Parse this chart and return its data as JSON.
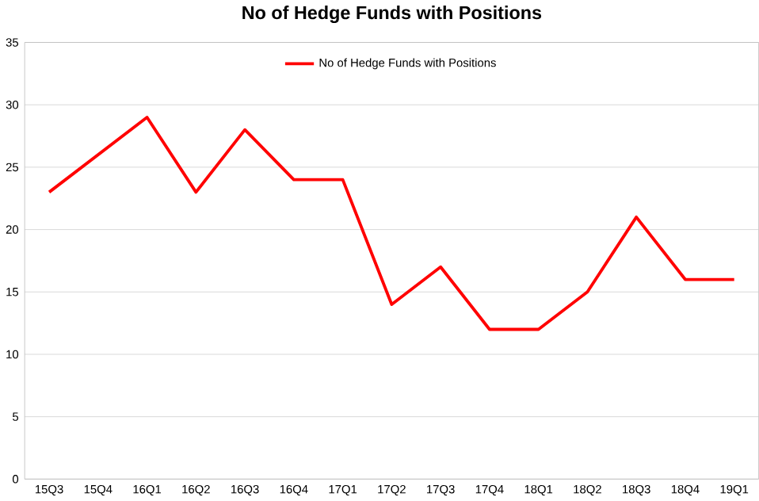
{
  "chart_data": {
    "type": "line",
    "title": "No of Hedge Funds with Positions",
    "categories": [
      "15Q3",
      "15Q4",
      "16Q1",
      "16Q2",
      "16Q3",
      "16Q4",
      "17Q1",
      "17Q2",
      "17Q3",
      "17Q4",
      "18Q1",
      "18Q2",
      "18Q3",
      "18Q4",
      "19Q1"
    ],
    "series": [
      {
        "name": "No of Hedge Funds with Positions",
        "color": "#ff0000",
        "values": [
          23,
          26,
          29,
          23,
          28,
          24,
          24,
          14,
          17,
          12,
          12,
          15,
          21,
          16,
          16
        ]
      }
    ],
    "ylim": [
      0,
      35
    ],
    "yticks": [
      0,
      5,
      10,
      15,
      20,
      25,
      30,
      35
    ],
    "grid": "y",
    "legend": "top",
    "marker": "none",
    "line_style": "solid"
  }
}
